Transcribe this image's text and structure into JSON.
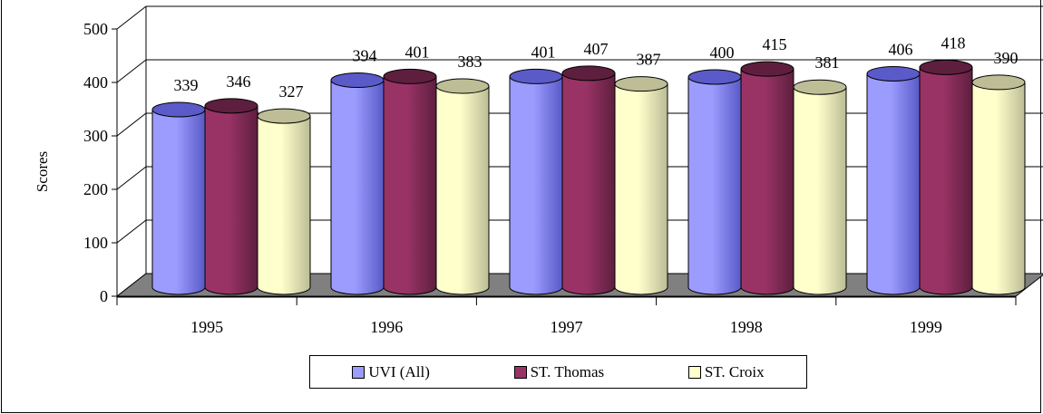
{
  "chart_data": {
    "type": "bar",
    "style": "3d-cylinder",
    "categories": [
      "1995",
      "1996",
      "1997",
      "1998",
      "1999"
    ],
    "series": [
      {
        "name": "UVI (All)",
        "values": [
          339,
          394,
          401,
          400,
          406
        ],
        "color": "#9C9CFF",
        "dark": "#5A5AC8"
      },
      {
        "name": "ST. Thomas",
        "values": [
          346,
          401,
          407,
          415,
          418
        ],
        "color": "#993366",
        "dark": "#5E1F3E"
      },
      {
        "name": "ST. Croix",
        "values": [
          327,
          383,
          387,
          381,
          390
        ],
        "color": "#FFFFCC",
        "dark": "#BDBD96"
      }
    ],
    "title": "",
    "xlabel": "",
    "ylabel": "Scores",
    "ylim": [
      0,
      500
    ],
    "yticks": [
      0,
      100,
      200,
      300,
      400,
      500
    ],
    "grid": true,
    "data_labels": true,
    "legend_position": "bottom",
    "floor_color": "#808080"
  }
}
